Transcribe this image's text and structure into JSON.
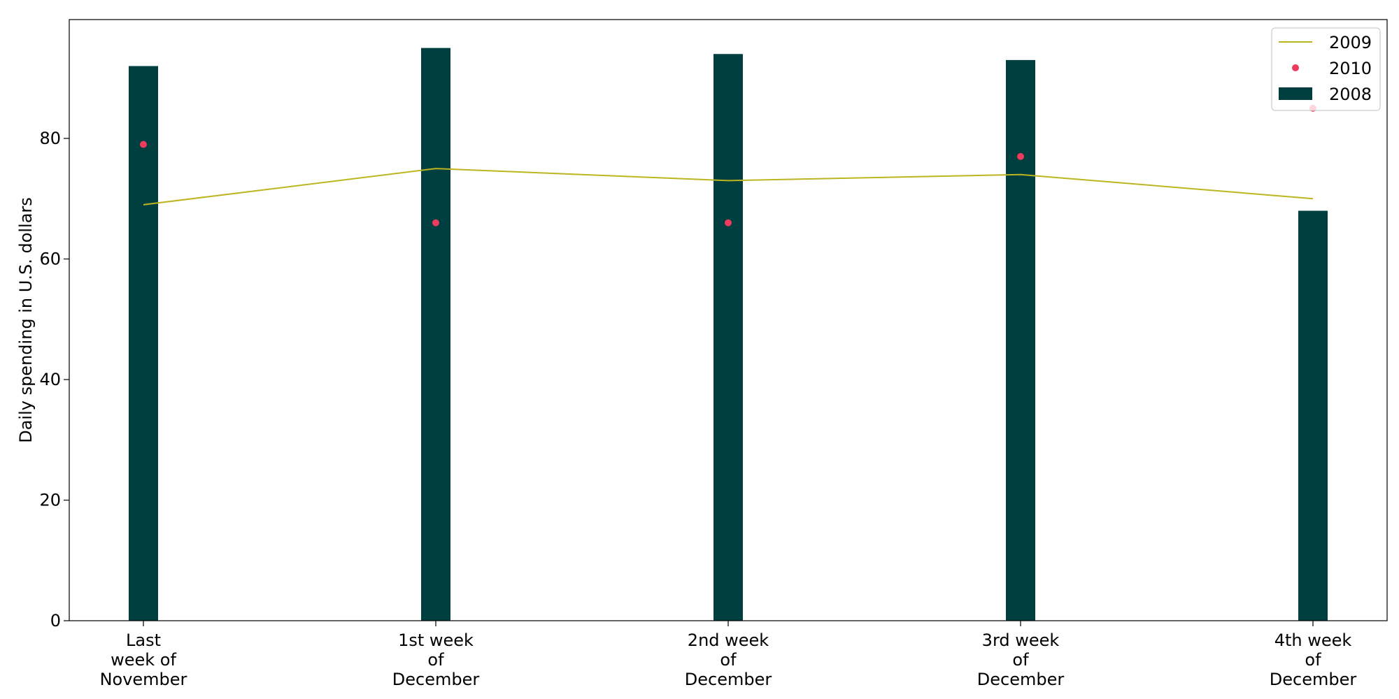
{
  "chart_data": {
    "type": "bar",
    "categories": [
      [
        "Last",
        "week of",
        "November"
      ],
      [
        "1st week",
        "of",
        "December"
      ],
      [
        "2nd week",
        "of",
        "December"
      ],
      [
        "3rd week",
        "of",
        "December"
      ],
      [
        "4th week",
        "of",
        "December"
      ]
    ],
    "series": [
      {
        "name": "2008",
        "kind": "bar",
        "color": "#003f3f",
        "values": [
          92,
          95,
          94,
          93,
          68
        ]
      },
      {
        "name": "2009",
        "kind": "line",
        "color": "#bcb51f",
        "values": [
          69,
          75,
          73,
          74,
          70
        ]
      },
      {
        "name": "2010",
        "kind": "scatter",
        "color": "#ee3a5c",
        "values": [
          79,
          66,
          66,
          77,
          85
        ]
      }
    ],
    "title": "",
    "xlabel": "",
    "ylabel": "Daily spending in U.S. dollars",
    "ylim": [
      0,
      100
    ],
    "yticks": [
      0,
      20,
      40,
      60,
      80
    ],
    "legend": {
      "placement": "top-right",
      "order": [
        "2009",
        "2010",
        "2008"
      ]
    },
    "grid": false
  }
}
